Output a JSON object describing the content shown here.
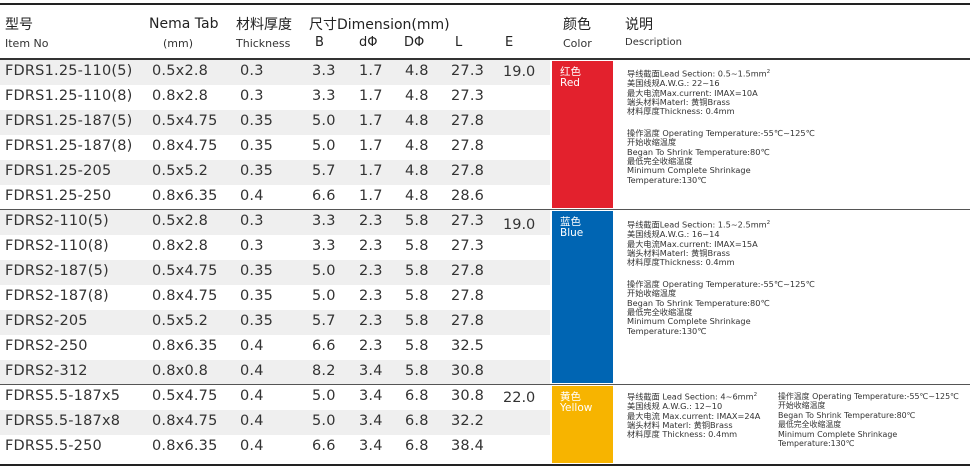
{
  "header": {
    "item_cn": "型号",
    "item_en": "Item No",
    "nema_en": "Nema Tab",
    "nema_unit": "(mm)",
    "thick_cn": "材料厚度",
    "thick_en": "Thickness",
    "dim_title": "尺寸Dimension(mm)",
    "col_b": "B",
    "col_d_small": "dΦ",
    "col_d_big": "DΦ",
    "col_l": "L",
    "col_e": "E",
    "color_cn": "颜色",
    "color_en": "Color",
    "desc_cn": "说明",
    "desc_en": "Description"
  },
  "groups": [
    {
      "e": "19.0",
      "color_cn": "红色",
      "color_en": "Red",
      "color_hex": "#e3212d",
      "rows": [
        {
          "item": "FDRS1.25-110(5)",
          "nema": "0.5x2.8",
          "thick": "0.3",
          "b": "3.3",
          "d": "1.7",
          "D": "4.8",
          "l": "27.3"
        },
        {
          "item": "FDRS1.25-110(8)",
          "nema": "0.8x2.8",
          "thick": "0.3",
          "b": "3.3",
          "d": "1.7",
          "D": "4.8",
          "l": "27.3"
        },
        {
          "item": "FDRS1.25-187(5)",
          "nema": "0.5x4.75",
          "thick": "0.35",
          "b": "5.0",
          "d": "1.7",
          "D": "4.8",
          "l": "27.8"
        },
        {
          "item": "FDRS1.25-187(8)",
          "nema": "0.8x4.75",
          "thick": "0.35",
          "b": "5.0",
          "d": "1.7",
          "D": "4.8",
          "l": "27.8"
        },
        {
          "item": "FDRS1.25-205",
          "nema": "0.5x5.2",
          "thick": "0.35",
          "b": "5.7",
          "d": "1.7",
          "D": "4.8",
          "l": "27.8"
        },
        {
          "item": "FDRS1.25-250",
          "nema": "0.8x6.35",
          "thick": "0.4",
          "b": "6.6",
          "d": "1.7",
          "D": "4.8",
          "l": "28.6"
        }
      ],
      "desc": {
        "section": "导线截面Lead Section: 0.5~1.5mm",
        "awg": "美国线规A.W.G.: 22~16",
        "current": "最大电流Max.current: IMAX=10A",
        "material": "端头材料Materl: 黄铜Brass",
        "thickness": "材料厚度Thickness: 0.4mm",
        "op_temp": "操作温度 Operating Temperature:-55℃~125℃",
        "shrink_cn": "开始收缩温度",
        "shrink_en": "Began To Shrink Temperature:80℃",
        "min_cn": "最低完全收缩温度",
        "min_en1": "Minimum Complete Shrinkage",
        "min_en2": "Temperature:130℃"
      }
    },
    {
      "e": "19.0",
      "color_cn": "蓝色",
      "color_en": "Blue",
      "color_hex": "#0065b3",
      "rows": [
        {
          "item": "FDRS2-110(5)",
          "nema": "0.5x2.8",
          "thick": "0.3",
          "b": "3.3",
          "d": "2.3",
          "D": "5.8",
          "l": "27.3"
        },
        {
          "item": "FDRS2-110(8)",
          "nema": "0.8x2.8",
          "thick": "0.3",
          "b": "3.3",
          "d": "2.3",
          "D": "5.8",
          "l": "27.3"
        },
        {
          "item": "FDRS2-187(5)",
          "nema": "0.5x4.75",
          "thick": "0.35",
          "b": "5.0",
          "d": "2.3",
          "D": "5.8",
          "l": "27.8"
        },
        {
          "item": "FDRS2-187(8)",
          "nema": "0.8x4.75",
          "thick": "0.35",
          "b": "5.0",
          "d": "2.3",
          "D": "5.8",
          "l": "27.8"
        },
        {
          "item": "FDRS2-205",
          "nema": "0.5x5.2",
          "thick": "0.35",
          "b": "5.7",
          "d": "2.3",
          "D": "5.8",
          "l": "27.8"
        },
        {
          "item": "FDRS2-250",
          "nema": "0.8x6.35",
          "thick": "0.4",
          "b": "6.6",
          "d": "2.3",
          "D": "5.8",
          "l": "32.5"
        },
        {
          "item": "FDRS2-312",
          "nema": "0.8x0.8",
          "thick": "0.4",
          "b": "8.2",
          "d": "3.4",
          "D": "5.8",
          "l": "30.8"
        }
      ],
      "desc": {
        "section": "导线截面Lead Section: 1.5~2.5mm",
        "awg": "美国线规A.W.G.: 16~14",
        "current": "最大电流Max.current: IMAX=15A",
        "material": "端头材料Materl: 黄铜Brass",
        "thickness": "材料厚度Thickness: 0.4mm",
        "op_temp": "操作温度 Operating Temperature:-55℃~125℃",
        "shrink_cn": "开始收缩温度",
        "shrink_en": "Began To Shrink Temperature:80℃",
        "min_cn": "最低完全收缩温度",
        "min_en1": "Minimum Complete Shrinkage",
        "min_en2": "Temperature:130℃"
      }
    },
    {
      "e": "22.0",
      "color_cn": "黄色",
      "color_en": "Yellow",
      "color_hex": "#f7b400",
      "rows": [
        {
          "item": "FDRS5.5-187x5",
          "nema": "0.5x4.75",
          "thick": "0.4",
          "b": "5.0",
          "d": "3.4",
          "D": "6.8",
          "l": "30.8"
        },
        {
          "item": "FDRS5.5-187x8",
          "nema": "0.8x4.75",
          "thick": "0.4",
          "b": "5.0",
          "d": "3.4",
          "D": "6.8",
          "l": "32.2"
        },
        {
          "item": "FDRS5.5-250",
          "nema": "0.8x6.35",
          "thick": "0.4",
          "b": "6.6",
          "d": "3.4",
          "D": "6.8",
          "l": "38.4"
        }
      ],
      "desc": {
        "section": "导线截面 Lead Section: 4~6mm",
        "awg": "美国线规 A.W.G.: 12~10",
        "current": "最大电流 Max.current: IMAX=24A",
        "material": "端头材料 Materl: 黄铜Brass",
        "thickness": "材料厚度 Thickness: 0.4mm",
        "op_temp": "操作温度 Operating Temperature:-55℃~125℃",
        "shrink_cn": "开始收缩温度",
        "shrink_en": "Began To Shrink Temperature:80℃",
        "min_cn": "最低完全收缩温度",
        "min_en1": "Minimum Complete Shrinkage",
        "min_en2": "Temperature:130℃"
      }
    }
  ],
  "superscript": "2"
}
